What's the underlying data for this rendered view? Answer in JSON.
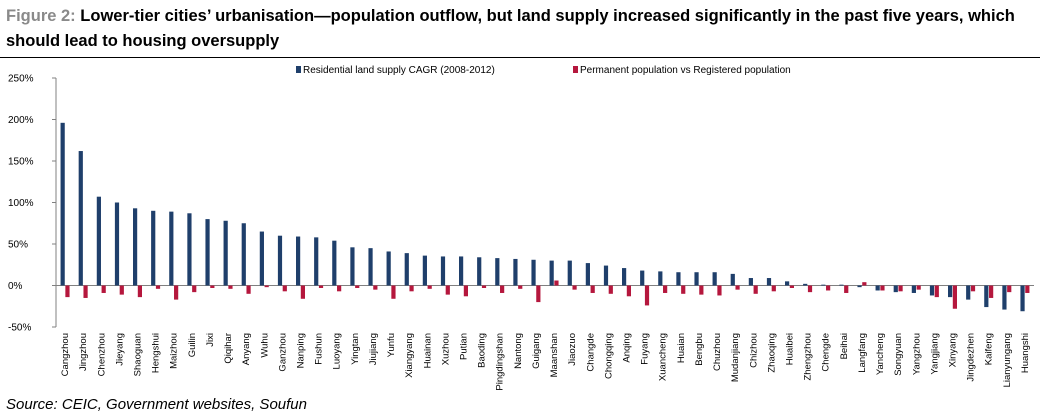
{
  "title": {
    "figure_label": "Figure 2:",
    "text": "Lower-tier cities’ urbanisation—population outflow, but land supply increased significantly in the past five years, which should lead to housing oversupply"
  },
  "source": "Source: CEIC, Government websites, Soufun",
  "colors": {
    "series1": "#1f3f6b",
    "series2": "#b5173d",
    "axis": "#808080"
  },
  "chart_data": {
    "type": "bar",
    "title": "Lower-tier cities’ urbanisation—population outflow, but land supply increased significantly in the past five years, which should lead to housing oversupply",
    "xlabel": "",
    "ylabel": "",
    "ylim": [
      -50,
      250
    ],
    "yticks": [
      -50,
      0,
      50,
      100,
      150,
      200,
      250
    ],
    "ytick_labels": [
      "-50%",
      "0%",
      "50%",
      "100%",
      "150%",
      "200%",
      "250%"
    ],
    "legend_position": "top",
    "categories": [
      "Cangzhou",
      "Jingzhou",
      "Chenzhou",
      "Jieyang",
      "Shaoguan",
      "Hengshui",
      "Maizhou",
      "Guilin",
      "Jixi",
      "Qiqihar",
      "Anyang",
      "Wuhu",
      "Ganzhou",
      "Nanping",
      "Fushun",
      "Luoyang",
      "Yingtan",
      "Jiujiang",
      "Yunfu",
      "Xiangyang",
      "Huainan",
      "Xuzhou",
      "Putian",
      "Baoding",
      "Pingdingshan",
      "Nantong",
      "Guigang",
      "Maanshan",
      "Jiaozuo",
      "Changde",
      "Chongqing",
      "Anqing",
      "Fuyang",
      "Xuancheng",
      "Huaian",
      "Bengbu",
      "Chuzhou",
      "Mudanjiang",
      "Chizhou",
      "Zhaoqing",
      "Huaibei",
      "Zhengzhou",
      "Chengde",
      "Beihai",
      "Langfang",
      "Yancheng",
      "Songyuan",
      "Yangzhou",
      "Yangjiang",
      "Xinyang",
      "Jingdezhen",
      "Kaifeng",
      "Lianyungang",
      "Huangshi"
    ],
    "series": [
      {
        "name": "Residential land supply CAGR  (2008-2012)",
        "values": [
          196,
          162,
          107,
          100,
          93,
          90,
          89,
          87,
          80,
          78,
          75,
          65,
          60,
          59,
          58,
          54,
          46,
          45,
          41,
          39,
          36,
          35,
          35,
          34,
          33,
          32,
          31,
          30,
          30,
          27,
          24,
          21,
          18,
          17,
          16,
          16,
          16,
          14,
          9,
          9,
          5,
          2,
          1,
          1,
          -2,
          -6,
          -8,
          -9,
          -12,
          -14,
          -17,
          -26,
          -29,
          -31
        ]
      },
      {
        "name": "Permanent population vs Registered population",
        "values": [
          -14,
          -15,
          -9,
          -11,
          -14,
          -4,
          -17,
          -8,
          -3,
          -4,
          -10,
          -2,
          -7,
          -16,
          -3,
          -7,
          -3,
          -5,
          -16,
          -7,
          -4,
          -11,
          -13,
          -3,
          -9,
          -4,
          -20,
          6,
          -5,
          -9,
          -10,
          -13,
          -24,
          -9,
          -10,
          -11,
          -12,
          -5,
          -10,
          -7,
          -3,
          -8,
          -6,
          -9,
          4,
          -6,
          -7,
          -5,
          -14,
          -28,
          -7,
          -15,
          -8,
          -9
        ]
      }
    ]
  }
}
